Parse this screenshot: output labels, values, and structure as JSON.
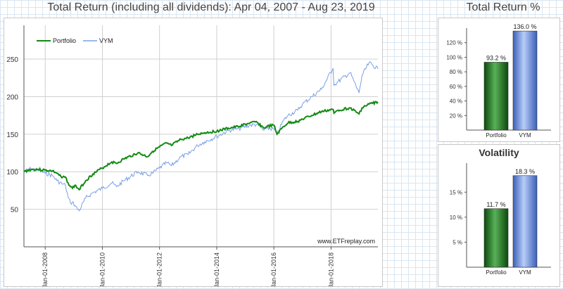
{
  "titles": {
    "main": "Total Return (including all dividends): Apr 04, 2007 - Aug 23, 2019",
    "side": "Total Return %"
  },
  "watermark": "www.ETFreplay.com",
  "colors": {
    "portfolio": "#148a14",
    "vym": "#7a9fe6"
  },
  "chart_data": [
    {
      "type": "line",
      "x_type": "date",
      "xlim": [
        "2007-04-04",
        "2019-08-23"
      ],
      "ylim": [
        0,
        295
      ],
      "yticks": [
        50,
        100,
        150,
        200,
        250
      ],
      "xticks": [
        "2008-01-01",
        "2010-01-01",
        "2012-01-01",
        "2014-01-01",
        "2016-01-01",
        "2018-01-01"
      ],
      "xtick_labels": [
        "Jan-01-2008",
        "Jan-01-2010",
        "Jan-01-2012",
        "Jan-01-2014",
        "Jan-01-2016",
        "Jan-01-2018"
      ],
      "grid": true,
      "legend_position": "top-left",
      "series": [
        {
          "name": "Portfolio",
          "x": [
            "2007-04-04",
            "2007-07-01",
            "2007-10-01",
            "2008-01-01",
            "2008-04-01",
            "2008-06-01",
            "2008-08-01",
            "2008-09-15",
            "2008-10-20",
            "2008-11-20",
            "2008-12-15",
            "2009-01-15",
            "2009-03-09",
            "2009-06-01",
            "2009-09-01",
            "2010-01-01",
            "2010-05-01",
            "2010-07-01",
            "2010-10-01",
            "2011-04-01",
            "2011-08-01",
            "2011-10-03",
            "2012-01-01",
            "2012-04-01",
            "2012-06-01",
            "2012-10-01",
            "2013-01-01",
            "2013-05-01",
            "2013-08-01",
            "2014-01-01",
            "2014-06-01",
            "2014-10-01",
            "2015-03-01",
            "2015-06-01",
            "2015-08-25",
            "2015-10-01",
            "2016-01-01",
            "2016-02-11",
            "2016-05-01",
            "2016-07-01",
            "2016-11-01",
            "2017-01-01",
            "2017-05-01",
            "2017-09-01",
            "2018-01-26",
            "2018-02-08",
            "2018-04-01",
            "2018-09-01",
            "2018-12-24",
            "2019-02-01",
            "2019-05-01",
            "2019-08-23"
          ],
          "values": [
            100,
            103,
            103,
            102,
            101,
            98,
            92,
            93,
            85,
            80,
            78,
            82,
            76,
            88,
            97,
            105,
            113,
            111,
            117,
            125,
            120,
            127,
            133,
            138,
            135,
            143,
            145,
            150,
            152,
            154,
            158,
            160,
            165,
            166,
            158,
            160,
            162,
            150,
            160,
            165,
            167,
            170,
            175,
            180,
            183,
            178,
            182,
            185,
            177,
            185,
            190,
            193
          ]
        },
        {
          "name": "VYM",
          "x": [
            "2007-04-04",
            "2007-07-01",
            "2007-10-01",
            "2008-01-01",
            "2008-04-01",
            "2008-06-01",
            "2008-08-01",
            "2008-09-15",
            "2008-10-20",
            "2008-11-20",
            "2008-12-15",
            "2009-01-15",
            "2009-03-09",
            "2009-06-01",
            "2009-09-01",
            "2010-01-01",
            "2010-05-01",
            "2010-07-01",
            "2010-10-01",
            "2011-04-01",
            "2011-08-01",
            "2011-10-03",
            "2012-01-01",
            "2012-04-01",
            "2012-06-01",
            "2012-10-01",
            "2013-01-01",
            "2013-05-01",
            "2013-08-01",
            "2014-01-01",
            "2014-06-01",
            "2014-10-01",
            "2015-03-01",
            "2015-06-01",
            "2015-08-25",
            "2015-10-01",
            "2016-01-01",
            "2016-02-11",
            "2016-05-01",
            "2016-07-01",
            "2016-11-01",
            "2017-01-01",
            "2017-05-01",
            "2017-09-01",
            "2018-01-26",
            "2018-02-08",
            "2018-04-01",
            "2018-09-01",
            "2018-12-24",
            "2019-02-01",
            "2019-05-01",
            "2019-08-23"
          ],
          "values": [
            100,
            104,
            102,
            98,
            95,
            88,
            84,
            82,
            66,
            58,
            60,
            55,
            48,
            65,
            72,
            78,
            85,
            80,
            88,
            100,
            95,
            98,
            105,
            112,
            108,
            120,
            123,
            135,
            140,
            147,
            155,
            157,
            162,
            163,
            155,
            158,
            157,
            150,
            168,
            175,
            182,
            190,
            200,
            210,
            238,
            215,
            220,
            232,
            205,
            228,
            245,
            237
          ]
        }
      ]
    },
    {
      "type": "bar",
      "title": "Total Return %",
      "categories": [
        "Portfolio",
        "VYM"
      ],
      "values": [
        93.2,
        136.0
      ],
      "data_labels": [
        "93.2 %",
        "136.0 %"
      ],
      "ylim": [
        0,
        140
      ],
      "yticks": [
        20,
        40,
        60,
        80,
        100,
        120
      ],
      "ytick_labels": [
        "20 %",
        "40 %",
        "60 %",
        "80 %",
        "100 %",
        "120 %"
      ]
    },
    {
      "type": "bar",
      "title": "Volatility",
      "categories": [
        "Portfolio",
        "VYM"
      ],
      "values": [
        11.7,
        18.3
      ],
      "data_labels": [
        "11.7 %",
        "18.3 %"
      ],
      "ylim": [
        0,
        20.8
      ],
      "yticks": [
        5,
        10,
        15
      ],
      "ytick_labels": [
        "5 %",
        "10 %",
        "15 %"
      ]
    }
  ]
}
